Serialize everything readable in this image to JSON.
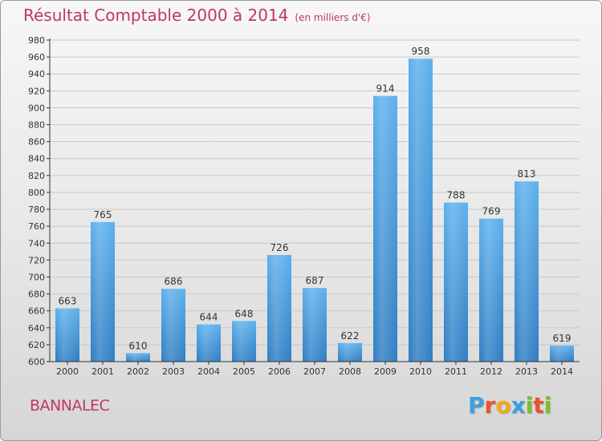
{
  "chart_data": {
    "type": "bar",
    "title": "Résultat Comptable 2000 à 2014",
    "subtitle": "(en milliers d'€)",
    "xlabel": "",
    "ylabel": "",
    "categories": [
      "2000",
      "2001",
      "2002",
      "2003",
      "2004",
      "2005",
      "2006",
      "2007",
      "2008",
      "2009",
      "2010",
      "2011",
      "2012",
      "2013",
      "2014"
    ],
    "values": [
      663,
      765,
      610,
      686,
      644,
      648,
      726,
      687,
      622,
      914,
      958,
      788,
      769,
      813,
      619
    ],
    "ylim": [
      600,
      980
    ],
    "ytick_step": 20,
    "grid": true,
    "bar_color": "#3d8fd6"
  },
  "footer": {
    "commune": "BANNALEC",
    "brand_letters": [
      "P",
      "r",
      "o",
      "x",
      "i",
      "t",
      "i"
    ],
    "brand_colors": [
      "#3aa0e0",
      "#e8542a",
      "#f3a81c",
      "#3aa0e0",
      "#7bbf2a",
      "#e8542a",
      "#7bbf2a"
    ]
  },
  "colors": {
    "title": "#c0366a",
    "axis": "#333333"
  }
}
